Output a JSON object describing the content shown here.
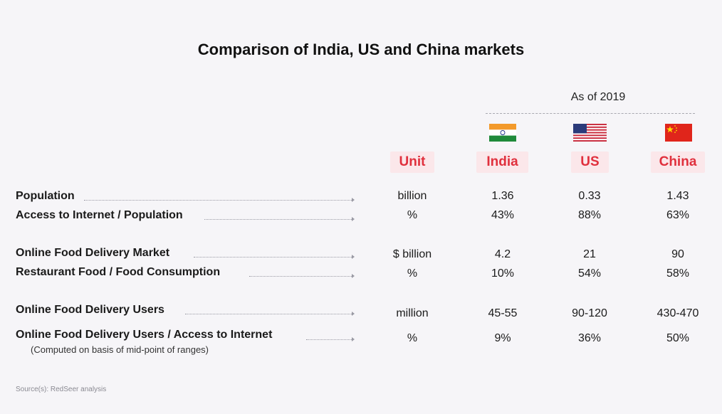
{
  "title": "Comparison of India, US and China markets",
  "as_of": "As of 2019",
  "headers": {
    "unit": "Unit",
    "india": "India",
    "us": "US",
    "china": "China"
  },
  "flags": {
    "india": "india-flag-icon",
    "us": "us-flag-icon",
    "china": "china-flag-icon"
  },
  "colors": {
    "accent": "#e0303d",
    "header_bg": "#fbe7ea",
    "background": "#f6f5f8"
  },
  "rows": [
    {
      "label": "Population",
      "unit": "billion",
      "india": "1.36",
      "us": "0.33",
      "china": "1.43"
    },
    {
      "label": "Access to Internet / Population",
      "unit": "%",
      "india": "43%",
      "us": "88%",
      "china": "63%"
    },
    {
      "label": "Online Food Delivery Market",
      "unit": "$ billion",
      "india": "4.2",
      "us": "21",
      "china": "90"
    },
    {
      "label": "Restaurant Food / Food Consumption",
      "unit": "%",
      "india": "10%",
      "us": "54%",
      "china": "58%"
    },
    {
      "label": "Online Food Delivery Users",
      "unit": "million",
      "india": "45-55",
      "us": "90-120",
      "china": "430-470"
    },
    {
      "label": "Online Food Delivery Users / Access to Internet",
      "sublabel": "(Computed on basis of mid-point of ranges)",
      "unit": "%",
      "india": "9%",
      "us": "36%",
      "china": "50%"
    }
  ],
  "source": "Source(s): RedSeer analysis"
}
